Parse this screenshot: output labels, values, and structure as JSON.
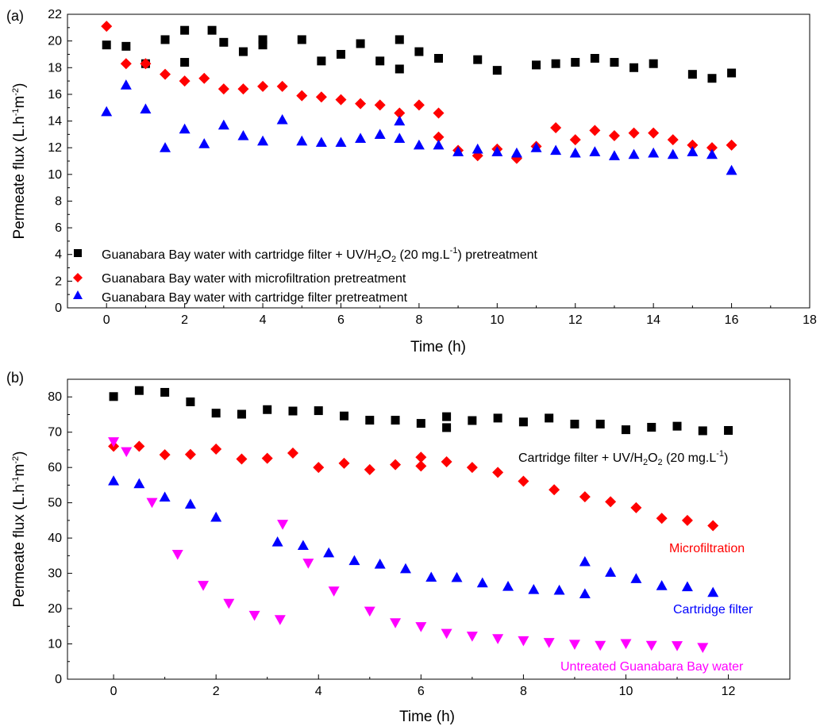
{
  "figure": {
    "panel_a_label": "(a)",
    "panel_b_label": "(b)"
  },
  "chart_data": [
    {
      "type": "scatter",
      "panel": "(a)",
      "xlabel": "Time (h)",
      "ylabel": {
        "main": "Permeate flux (L.h",
        "sup1": "-1",
        "mid": "m",
        "sup2": "-2",
        "end": ")"
      },
      "xlim": [
        -1,
        18
      ],
      "ylim": [
        0,
        22
      ],
      "xticks": [
        0,
        2,
        4,
        6,
        8,
        10,
        12,
        14,
        16,
        18
      ],
      "yticks": [
        0,
        2,
        4,
        6,
        8,
        10,
        12,
        14,
        16,
        18,
        20,
        22
      ],
      "legend_position": "bottom-left",
      "series": [
        {
          "name": "Guanabara Bay water with cartridge filter + UV/H2O2 (20 mg.L-1) pretreatment",
          "legend_parts": {
            "a": "Guanabara Bay water with cartridge filter + UV/H",
            "sub": "2",
            "b": "O",
            "sub2": "2",
            "c": " (20 mg.L",
            "sup": "-1",
            "d": ") pretreatment"
          },
          "marker": "square",
          "color": "#000000",
          "x": [
            0,
            0.5,
            1,
            1.5,
            2,
            2,
            2.7,
            3,
            3.5,
            4,
            4,
            5,
            5.5,
            6,
            6.5,
            7,
            7.5,
            7.5,
            8,
            8.5,
            9.5,
            10,
            11,
            11.5,
            12,
            12.5,
            13,
            13.5,
            14,
            15,
            15.5,
            16
          ],
          "y": [
            19.7,
            19.6,
            18.3,
            20.1,
            20.8,
            18.4,
            20.8,
            19.9,
            19.2,
            20.1,
            19.7,
            20.1,
            18.5,
            19.0,
            19.8,
            18.5,
            20.1,
            17.9,
            19.2,
            18.7,
            18.6,
            17.8,
            18.2,
            18.3,
            18.4,
            18.7,
            18.4,
            18.0,
            18.3,
            17.5,
            17.2,
            17.6
          ]
        },
        {
          "name": "Guanabara Bay water with microfiltration pretreatment",
          "marker": "diamond",
          "color": "#ff0000",
          "x": [
            0,
            0.5,
            1,
            1.5,
            2,
            2.5,
            3,
            3.5,
            4,
            4.5,
            5,
            5.5,
            6,
            6.5,
            7,
            7.5,
            8,
            8.5,
            8.5,
            9,
            9.5,
            10,
            10.5,
            11,
            11.5,
            12,
            12.5,
            13,
            13.5,
            14,
            14.5,
            15,
            15.5,
            16
          ],
          "y": [
            21.1,
            18.3,
            18.3,
            17.5,
            17.0,
            17.2,
            16.4,
            16.4,
            16.6,
            16.6,
            15.9,
            15.8,
            15.6,
            15.3,
            15.2,
            14.6,
            15.2,
            14.6,
            12.8,
            11.8,
            11.4,
            11.9,
            11.2,
            12.1,
            13.5,
            12.6,
            13.3,
            12.9,
            13.1,
            13.1,
            12.6,
            12.2,
            12.0,
            12.2
          ]
        },
        {
          "name": "Guanabara Bay water with cartridge filter pretreatment",
          "marker": "triangle-up",
          "color": "#0000ff",
          "x": [
            0,
            0.5,
            1,
            1.5,
            2,
            2.5,
            3,
            3.5,
            4,
            4.5,
            5,
            5.5,
            6,
            6.5,
            7,
            7.5,
            7.5,
            8,
            8.5,
            9,
            9.5,
            10,
            10.5,
            11,
            11.5,
            12,
            12.5,
            13,
            13.5,
            14,
            14.5,
            15,
            15.5,
            16
          ],
          "y": [
            14.7,
            16.7,
            14.9,
            12.0,
            13.4,
            12.3,
            13.7,
            12.9,
            12.5,
            14.1,
            12.5,
            12.4,
            12.4,
            12.7,
            13.0,
            14.0,
            12.7,
            12.2,
            12.2,
            11.7,
            11.9,
            11.7,
            11.6,
            12.0,
            11.8,
            11.6,
            11.7,
            11.4,
            11.5,
            11.6,
            11.5,
            11.7,
            11.5,
            10.3
          ]
        }
      ]
    },
    {
      "type": "scatter",
      "panel": "(b)",
      "xlabel": "Time (h)",
      "ylabel": {
        "main": "Permeate flux (L.h",
        "sup1": "-1",
        "mid": "m",
        "sup2": "-2",
        "end": ")"
      },
      "xlim": [
        -0.9,
        13.2
      ],
      "ylim": [
        0,
        85
      ],
      "xticks": [
        0,
        2,
        4,
        6,
        8,
        10,
        12
      ],
      "yticks": [
        0,
        10,
        20,
        30,
        40,
        50,
        60,
        70,
        80
      ],
      "legend_position": "inline labels",
      "series": [
        {
          "name": "Cartridge filter + UV/H2O2 (20 mg.L-1)",
          "label_parts": {
            "a": "Cartridge filter + UV/H",
            "sub": "2",
            "b": "O",
            "sub2": "2",
            "c": " (20 mg.L",
            "sup": "-1",
            "d": ")"
          },
          "marker": "square",
          "color": "#000000",
          "x": [
            0,
            0.5,
            1,
            1.5,
            2,
            2.5,
            3,
            3.5,
            4,
            4.5,
            5,
            5.5,
            6,
            6.5,
            6.5,
            7,
            7.5,
            8,
            8.5,
            9,
            9.5,
            10,
            10.5,
            11,
            11.5,
            12
          ],
          "y": [
            80.1,
            81.8,
            81.3,
            78.6,
            75.4,
            75.1,
            76.4,
            76.0,
            76.1,
            74.6,
            73.4,
            73.4,
            72.5,
            74.4,
            71.3,
            73.3,
            74.0,
            72.9,
            74.0,
            72.3,
            72.3,
            70.7,
            71.4,
            71.7,
            70.4,
            70.5
          ]
        },
        {
          "name": "Microfiltration",
          "marker": "diamond",
          "color": "#ff0000",
          "x": [
            0,
            0.5,
            1,
            1.5,
            2,
            2.5,
            3,
            3.5,
            4,
            4.5,
            5,
            5.5,
            6,
            6,
            6.5,
            7,
            7.5,
            8,
            8.6,
            9.2,
            9.7,
            10.2,
            10.7,
            11.2,
            11.7
          ],
          "y": [
            66.0,
            66.0,
            63.6,
            63.7,
            65.2,
            62.4,
            62.6,
            64.1,
            60.0,
            61.2,
            59.4,
            60.8,
            62.9,
            60.4,
            61.6,
            60.0,
            58.6,
            56.1,
            53.7,
            51.7,
            50.3,
            48.6,
            45.6,
            45.0,
            43.5
          ]
        },
        {
          "name": "Cartridge filter",
          "marker": "triangle-up",
          "color": "#0000ff",
          "x": [
            0,
            0.5,
            1,
            1.5,
            2,
            3.2,
            3.7,
            4.2,
            4.7,
            5.2,
            5.7,
            6.2,
            6.7,
            7.2,
            7.7,
            8.2,
            8.7,
            9.2,
            9.2,
            9.7,
            10.2,
            10.7,
            11.2,
            11.7
          ],
          "y": [
            56.2,
            55.4,
            51.6,
            49.6,
            45.9,
            38.9,
            37.9,
            35.8,
            33.6,
            32.6,
            31.3,
            28.9,
            28.8,
            27.3,
            26.3,
            25.4,
            25.2,
            24.2,
            33.3,
            30.3,
            28.5,
            26.5,
            26.2,
            24.6
          ]
        },
        {
          "name": "Untreated Guanabara Bay water",
          "marker": "triangle-down",
          "color": "#ff00ff",
          "x": [
            0,
            0.25,
            0.75,
            1.25,
            1.75,
            2.25,
            2.75,
            3.25,
            3.3,
            3.8,
            4.3,
            5.0,
            5.5,
            6.0,
            6.5,
            7.0,
            7.5,
            8.0,
            8.5,
            9.0,
            9.5,
            10.0,
            10.5,
            11.0,
            11.5
          ],
          "y": [
            67.3,
            64.5,
            50.1,
            35.4,
            26.6,
            21.5,
            18.1,
            16.9,
            43.9,
            32.9,
            25.0,
            19.3,
            16.0,
            14.9,
            13.0,
            12.2,
            11.5,
            10.9,
            10.4,
            9.9,
            9.6,
            10.1,
            9.6,
            9.5,
            9.0
          ]
        }
      ]
    }
  ]
}
